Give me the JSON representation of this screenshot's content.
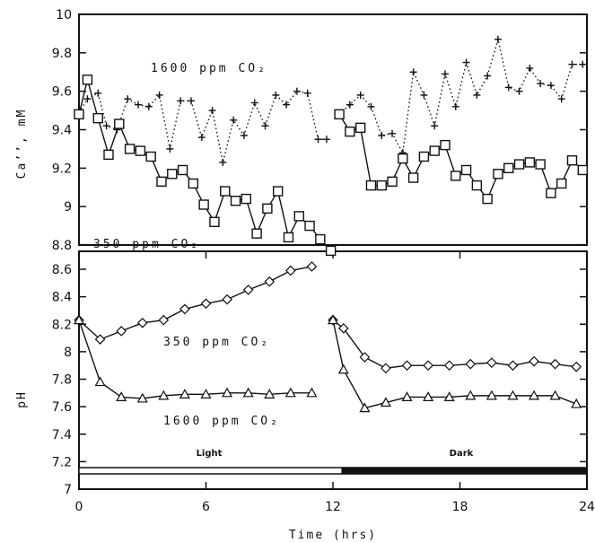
{
  "chart_data": [
    {
      "type": "line",
      "ylabel": "Ca’’, mM",
      "ylim": [
        8.8,
        10
      ],
      "yticks": [
        "10",
        "9.8",
        "9.6",
        "9.4",
        "9.2",
        "9",
        "8.8"
      ],
      "annotations": {
        "upper": "1600 ppm CO₂",
        "lower": "350 ppm CO₂"
      },
      "series": [
        {
          "id": "ca_1600",
          "marker": "plus",
          "line": "dotted",
          "segments": [
            {
              "x": [
                0,
                0.4,
                0.9,
                1.3,
                1.8,
                2.3,
                2.8,
                3.3,
                3.8,
                4.3,
                4.8,
                5.3,
                5.8,
                6.3,
                6.8,
                7.3,
                7.8,
                8.3,
                8.8,
                9.3,
                9.8,
                10.3,
                10.8,
                11.3,
                11.7
              ],
              "y": [
                9.49,
                9.56,
                9.59,
                9.42,
                9.4,
                9.56,
                9.53,
                9.52,
                9.58,
                9.3,
                9.55,
                9.55,
                9.36,
                9.5,
                9.23,
                9.45,
                9.37,
                9.54,
                9.42,
                9.58,
                9.53,
                9.6,
                9.59,
                9.35,
                9.35
              ]
            },
            {
              "x": [
                12.3,
                12.8,
                13.3,
                13.8,
                14.3,
                14.8,
                15.3,
                15.8,
                16.3,
                16.8,
                17.3,
                17.8,
                18.3,
                18.8,
                19.3,
                19.8,
                20.3,
                20.8,
                21.3,
                21.8,
                22.3,
                22.8,
                23.3,
                23.8
              ],
              "y": [
                9.48,
                9.53,
                9.58,
                9.52,
                9.37,
                9.38,
                9.28,
                9.7,
                9.58,
                9.42,
                9.69,
                9.52,
                9.75,
                9.58,
                9.68,
                9.87,
                9.62,
                9.6,
                9.72,
                9.64,
                9.63,
                9.56,
                9.74,
                9.74
              ]
            }
          ]
        },
        {
          "id": "ca_350",
          "marker": "square",
          "line": "solid",
          "segments": [
            {
              "x": [
                0,
                0.4,
                0.9,
                1.4,
                1.9,
                2.4,
                2.9,
                3.4,
                3.9,
                4.4,
                4.9,
                5.4,
                5.9,
                6.4,
                6.9,
                7.4,
                7.9,
                8.4,
                8.9,
                9.4,
                9.9,
                10.4,
                10.9,
                11.4,
                11.9
              ],
              "y": [
                9.48,
                9.66,
                9.46,
                9.27,
                9.43,
                9.3,
                9.29,
                9.26,
                9.13,
                9.17,
                9.19,
                9.12,
                9.01,
                8.92,
                9.08,
                9.03,
                9.04,
                8.86,
                8.99,
                9.08,
                8.84,
                8.95,
                8.9,
                8.83,
                8.77
              ]
            },
            {
              "x": [
                12.3,
                12.8,
                13.3,
                13.8,
                14.3,
                14.8,
                15.3,
                15.8,
                16.3,
                16.8,
                17.3,
                17.8,
                18.3,
                18.8,
                19.3,
                19.8,
                20.3,
                20.8,
                21.3,
                21.8,
                22.3,
                22.8,
                23.3,
                23.8
              ],
              "y": [
                9.48,
                9.39,
                9.41,
                9.11,
                9.11,
                9.13,
                9.25,
                9.15,
                9.26,
                9.29,
                9.32,
                9.16,
                9.19,
                9.11,
                9.04,
                9.17,
                9.2,
                9.22,
                9.23,
                9.22,
                9.07,
                9.12,
                9.24,
                9.19
              ]
            }
          ]
        }
      ]
    },
    {
      "type": "line",
      "ylabel": "pH",
      "ylim": [
        7,
        8.7
      ],
      "yticks": [
        "8.6",
        "8.4",
        "8.2",
        "8",
        "7.8",
        "7.6",
        "7.4",
        "7.2",
        "7"
      ],
      "xlabel": "Time (hrs)",
      "xlim": [
        0,
        24
      ],
      "xticks": [
        "0",
        "6",
        "12",
        "18",
        "24"
      ],
      "annotations": {
        "upper": "350 ppm CO₂",
        "lower": "1600 ppm CO₂",
        "light": "Light",
        "dark": "Dark"
      },
      "series": [
        {
          "id": "ph_350",
          "marker": "diamond",
          "line": "solid",
          "segments": [
            {
              "x": [
                0,
                1,
                2,
                3,
                4,
                5,
                6,
                7,
                8,
                9,
                10,
                11
              ],
              "y": [
                8.23,
                8.09,
                8.15,
                8.21,
                8.23,
                8.31,
                8.35,
                8.38,
                8.45,
                8.51,
                8.59,
                8.62
              ]
            },
            {
              "x": [
                12,
                12.5,
                13.5,
                14.5,
                15.5,
                16.5,
                17.5,
                18.5,
                19.5,
                20.5,
                21.5,
                22.5,
                23.5
              ],
              "y": [
                8.23,
                8.17,
                7.96,
                7.88,
                7.9,
                7.9,
                7.9,
                7.91,
                7.92,
                7.9,
                7.93,
                7.91,
                7.89
              ]
            }
          ]
        },
        {
          "id": "ph_1600",
          "marker": "triangle",
          "line": "solid",
          "segments": [
            {
              "x": [
                0,
                1,
                2,
                3,
                4,
                5,
                6,
                7,
                8,
                9,
                10,
                11
              ],
              "y": [
                8.23,
                7.78,
                7.67,
                7.66,
                7.68,
                7.69,
                7.69,
                7.7,
                7.7,
                7.69,
                7.7,
                7.7
              ]
            },
            {
              "x": [
                12,
                12.5,
                13.5,
                14.5,
                15.5,
                16.5,
                17.5,
                18.5,
                19.5,
                20.5,
                21.5,
                22.5,
                23.5
              ],
              "y": [
                8.23,
                7.87,
                7.59,
                7.63,
                7.67,
                7.67,
                7.67,
                7.68,
                7.68,
                7.68,
                7.68,
                7.68,
                7.62
              ]
            }
          ]
        }
      ]
    }
  ]
}
